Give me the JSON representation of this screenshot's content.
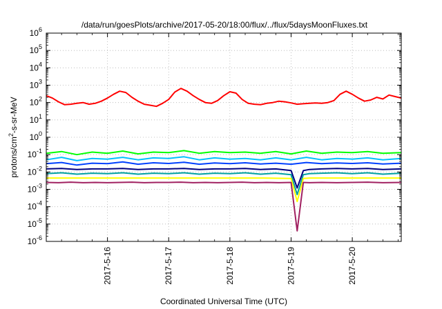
{
  "chart_data": {
    "type": "line",
    "title": "/data/run/goesPlots/archive/2017-05-20/18:00/flux/../flux/5daysMoonFluxes.txt",
    "xlabel": "Coordinated Universal Time (UTC)",
    "ylabel": {
      "pre": "protons/cm",
      "sup": "2",
      "post": "-s-sr-MeV"
    },
    "y_scale": "log",
    "ylim": [
      1e-06,
      1000000.0
    ],
    "x_range_days": [
      0.0,
      5.8
    ],
    "x_ticks": [
      {
        "value": 1,
        "label": "2017-5-16"
      },
      {
        "value": 2,
        "label": "2017-5-17"
      },
      {
        "value": 3,
        "label": "2017-5-18"
      },
      {
        "value": 4,
        "label": "2017-5-19"
      },
      {
        "value": 5,
        "label": "2017-5-20"
      }
    ],
    "y_ticks": [
      {
        "value": 1e-06,
        "base": "10",
        "exp": "-6"
      },
      {
        "value": 1e-05,
        "base": "10",
        "exp": "-5"
      },
      {
        "value": 0.0001,
        "base": "10",
        "exp": "-4"
      },
      {
        "value": 0.001,
        "base": "10",
        "exp": "-3"
      },
      {
        "value": 0.01,
        "base": "10",
        "exp": "-2"
      },
      {
        "value": 0.1,
        "base": "10",
        "exp": "-1"
      },
      {
        "value": 1,
        "base": "10",
        "exp": "0"
      },
      {
        "value": 10,
        "base": "10",
        "exp": "1"
      },
      {
        "value": 100,
        "base": "10",
        "exp": "2"
      },
      {
        "value": 1000,
        "base": "10",
        "exp": "3"
      },
      {
        "value": 10000,
        "base": "10",
        "exp": "4"
      },
      {
        "value": 100000,
        "base": "10",
        "exp": "5"
      },
      {
        "value": 1000000,
        "base": "10",
        "exp": "6"
      }
    ],
    "grid": true,
    "series": [
      {
        "color": "#ff0000",
        "x": [
          0.0,
          0.1,
          0.2,
          0.3,
          0.4,
          0.5,
          0.6,
          0.7,
          0.8,
          0.9,
          1.0,
          1.1,
          1.2,
          1.3,
          1.4,
          1.5,
          1.6,
          1.7,
          1.8,
          1.9,
          2.0,
          2.1,
          2.2,
          2.3,
          2.4,
          2.5,
          2.6,
          2.7,
          2.8,
          2.9,
          3.0,
          3.1,
          3.2,
          3.3,
          3.4,
          3.5,
          3.6,
          3.7,
          3.8,
          3.9,
          4.0,
          4.1,
          4.2,
          4.3,
          4.4,
          4.5,
          4.6,
          4.7,
          4.8,
          4.9,
          5.0,
          5.1,
          5.2,
          5.3,
          5.4,
          5.5,
          5.6,
          5.7,
          5.8
        ],
        "values": [
          250,
          180,
          110,
          75,
          80,
          90,
          100,
          80,
          90,
          120,
          180,
          300,
          450,
          380,
          200,
          120,
          80,
          70,
          60,
          90,
          150,
          400,
          650,
          450,
          250,
          150,
          100,
          90,
          130,
          250,
          420,
          350,
          150,
          90,
          80,
          75,
          90,
          100,
          120,
          110,
          95,
          80,
          85,
          90,
          95,
          90,
          100,
          130,
          300,
          450,
          300,
          180,
          120,
          140,
          200,
          160,
          270,
          220,
          180
        ]
      },
      {
        "color": "#00ff00",
        "x": [
          0.0,
          0.25,
          0.5,
          0.75,
          1.0,
          1.25,
          1.5,
          1.75,
          2.0,
          2.25,
          2.5,
          2.75,
          3.0,
          3.25,
          3.5,
          3.75,
          4.0,
          4.25,
          4.5,
          4.75,
          5.0,
          5.25,
          5.5,
          5.8
        ],
        "values": [
          0.12,
          0.15,
          0.1,
          0.14,
          0.12,
          0.16,
          0.11,
          0.14,
          0.13,
          0.17,
          0.12,
          0.15,
          0.13,
          0.14,
          0.12,
          0.15,
          0.11,
          0.16,
          0.12,
          0.14,
          0.13,
          0.15,
          0.12,
          0.13
        ]
      },
      {
        "color": "#00c0ff",
        "x": [
          0.0,
          0.25,
          0.5,
          0.75,
          1.0,
          1.25,
          1.5,
          1.75,
          2.0,
          2.25,
          2.5,
          2.75,
          3.0,
          3.25,
          3.5,
          3.75,
          4.0,
          4.25,
          4.5,
          4.75,
          5.0,
          5.25,
          5.5,
          5.8
        ],
        "values": [
          0.05,
          0.07,
          0.045,
          0.06,
          0.055,
          0.07,
          0.05,
          0.065,
          0.06,
          0.075,
          0.05,
          0.065,
          0.055,
          0.06,
          0.05,
          0.065,
          0.05,
          0.07,
          0.05,
          0.06,
          0.055,
          0.065,
          0.05,
          0.06
        ]
      },
      {
        "color": "#0040ff",
        "x": [
          0.0,
          0.25,
          0.5,
          0.75,
          1.0,
          1.25,
          1.5,
          1.75,
          2.0,
          2.25,
          2.5,
          2.75,
          3.0,
          3.25,
          3.5,
          3.75,
          4.0,
          4.25,
          4.5,
          4.75,
          5.0,
          5.25,
          5.5,
          5.8
        ],
        "values": [
          0.03,
          0.035,
          0.025,
          0.032,
          0.03,
          0.038,
          0.028,
          0.034,
          0.031,
          0.036,
          0.028,
          0.033,
          0.03,
          0.034,
          0.029,
          0.032,
          0.028,
          0.035,
          0.03,
          0.033,
          0.031,
          0.034,
          0.029,
          0.032
        ]
      },
      {
        "color": "#000080",
        "x": [
          0.0,
          0.25,
          0.5,
          0.75,
          1.0,
          1.25,
          1.5,
          1.75,
          2.0,
          2.25,
          2.5,
          2.75,
          3.0,
          3.25,
          3.5,
          3.75,
          4.0,
          4.1,
          4.2,
          4.3,
          4.5,
          4.75,
          5.0,
          5.25,
          5.5,
          5.8
        ],
        "values": [
          0.015,
          0.016,
          0.014,
          0.015,
          0.015,
          0.016,
          0.014,
          0.015,
          0.015,
          0.016,
          0.014,
          0.015,
          0.015,
          0.016,
          0.014,
          0.015,
          0.012,
          0.0012,
          0.012,
          0.014,
          0.015,
          0.016,
          0.015,
          0.016,
          0.014,
          0.015
        ]
      },
      {
        "color": "#00a0a0",
        "x": [
          0.0,
          0.25,
          0.5,
          0.75,
          1.0,
          1.25,
          1.5,
          1.75,
          2.0,
          2.25,
          2.5,
          2.75,
          3.0,
          3.25,
          3.5,
          3.75,
          4.0,
          4.1,
          4.2,
          4.3,
          4.5,
          4.75,
          5.0,
          5.25,
          5.5,
          5.8
        ],
        "values": [
          0.008,
          0.009,
          0.0075,
          0.0085,
          0.008,
          0.009,
          0.0075,
          0.0085,
          0.008,
          0.009,
          0.0075,
          0.0085,
          0.008,
          0.009,
          0.0075,
          0.0085,
          0.007,
          0.0005,
          0.007,
          0.008,
          0.0085,
          0.009,
          0.008,
          0.009,
          0.0075,
          0.0085
        ]
      },
      {
        "color": "#ffff00",
        "x": [
          0.0,
          0.5,
          1.0,
          1.5,
          2.0,
          2.5,
          3.0,
          3.5,
          4.0,
          4.1,
          4.2,
          4.3,
          4.5,
          5.0,
          5.5,
          5.8
        ],
        "values": [
          0.0045,
          0.0045,
          0.0045,
          0.0045,
          0.0045,
          0.0045,
          0.0045,
          0.0045,
          0.0042,
          0.0002,
          0.0042,
          0.0045,
          0.0045,
          0.0045,
          0.0045,
          0.0045
        ]
      },
      {
        "color": "#a02060",
        "x": [
          0.0,
          0.2,
          0.4,
          0.6,
          0.8,
          1.0,
          1.2,
          1.4,
          1.6,
          1.8,
          2.0,
          2.2,
          2.4,
          2.6,
          2.8,
          3.0,
          3.2,
          3.4,
          3.6,
          3.8,
          4.0,
          4.1,
          4.2,
          4.3,
          4.5,
          4.75,
          5.0,
          5.25,
          5.5,
          5.8
        ],
        "values": [
          0.0025,
          0.0024,
          0.0026,
          0.0024,
          0.0025,
          0.0024,
          0.0025,
          0.0026,
          0.0024,
          0.0025,
          0.0025,
          0.0026,
          0.0024,
          0.0025,
          0.0024,
          0.0025,
          0.0026,
          0.0024,
          0.0025,
          0.0024,
          0.0025,
          4e-06,
          0.0025,
          0.0024,
          0.0025,
          0.0024,
          0.0025,
          0.0026,
          0.0024,
          0.0025
        ]
      }
    ]
  }
}
